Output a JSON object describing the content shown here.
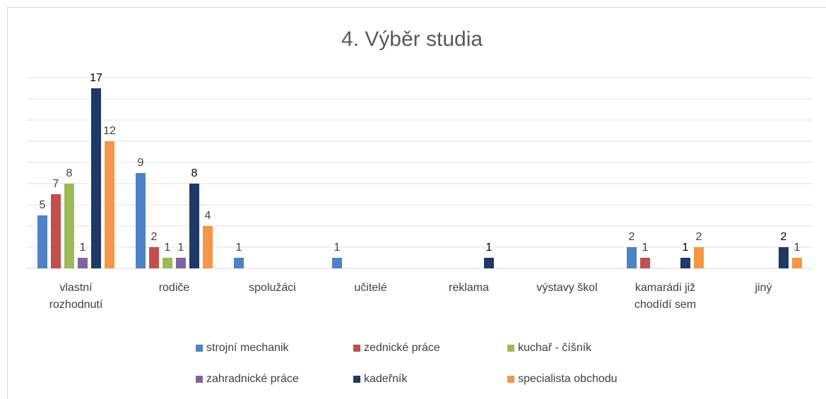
{
  "chart_data": {
    "type": "bar",
    "title": "4. Výběr studia",
    "categories": [
      "vlastní rozhodnutí",
      "rodiče",
      "spolužáci",
      "učitelé",
      "reklama",
      "výstavy škol",
      "kamarádi již chodídí sem",
      "jiný"
    ],
    "series": [
      {
        "name": "strojní mechanik",
        "color": "#4f81c7",
        "values": [
          5,
          9,
          1,
          1,
          null,
          null,
          2,
          null
        ]
      },
      {
        "name": "zednické práce",
        "color": "#c0504d",
        "values": [
          7,
          2,
          null,
          null,
          null,
          null,
          1,
          null
        ]
      },
      {
        "name": "kuchař - číšník",
        "color": "#9bbb59",
        "values": [
          8,
          1,
          null,
          null,
          null,
          null,
          null,
          null
        ]
      },
      {
        "name": "zahradnické práce",
        "color": "#8064a2",
        "values": [
          1,
          1,
          null,
          null,
          null,
          null,
          null,
          null
        ]
      },
      {
        "name": "kadeřník",
        "color": "#1f3864",
        "values": [
          17,
          8,
          null,
          null,
          1,
          null,
          1,
          2
        ]
      },
      {
        "name": "specialista obchodu",
        "color": "#f79646",
        "values": [
          12,
          4,
          null,
          null,
          null,
          null,
          2,
          1
        ]
      }
    ],
    "ylim": [
      0,
      18
    ],
    "yticks": [
      0,
      2,
      4,
      6,
      8,
      10,
      12,
      14,
      16,
      18
    ],
    "grid": true
  }
}
